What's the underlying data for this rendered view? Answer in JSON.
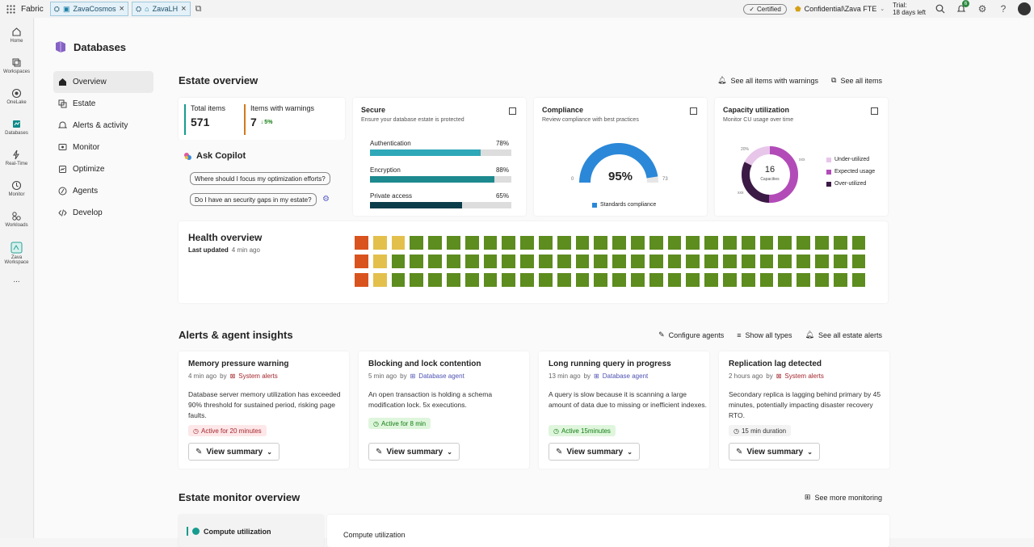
{
  "topbar": {
    "brand": "Fabric",
    "tabs": [
      {
        "label": "ZavaCosmos"
      },
      {
        "label": "ZavaLH"
      }
    ],
    "certified": "Certified",
    "sensitivity": "Confidential\\Zava FTE",
    "trial_line1": "Trial:",
    "trial_line2": "18 days left",
    "notification_count": "6"
  },
  "rail": [
    {
      "label": "Home"
    },
    {
      "label": "Workspaces"
    },
    {
      "label": "OneLake"
    },
    {
      "label": "Databases"
    },
    {
      "label": "Real-Time"
    },
    {
      "label": "Monitor"
    },
    {
      "label": "Workloads"
    },
    {
      "label": "Zava Workspace"
    },
    {
      "label": "..."
    }
  ],
  "page": {
    "title": "Databases"
  },
  "nav": [
    {
      "label": "Overview"
    },
    {
      "label": "Estate"
    },
    {
      "label": "Alerts & activity"
    },
    {
      "label": "Monitor"
    },
    {
      "label": "Optimize"
    },
    {
      "label": "Agents"
    },
    {
      "label": "Develop"
    }
  ],
  "estate": {
    "title": "Estate overview",
    "link_warnings": "See all items with warnings",
    "link_items": "See all items",
    "total_label": "Total items",
    "total_value": "571",
    "warn_label": "Items with warnings",
    "warn_value": "7",
    "warn_delta": "5%",
    "copilot": "Ask Copilot",
    "suggestions": [
      "Where should I focus my optimization efforts?",
      "Do I have an security gaps in my estate?"
    ]
  },
  "secure": {
    "title": "Secure",
    "subtitle": "Ensure your database estate is protected",
    "bars": [
      {
        "label": "Authentication",
        "percent": "78%",
        "value": 78,
        "color": "#2fa8b8"
      },
      {
        "label": "Encryption",
        "percent": "88%",
        "value": 88,
        "color": "#1d8a8f"
      },
      {
        "label": "Private access",
        "percent": "65%",
        "value": 65,
        "color": "#0c3d4a"
      }
    ]
  },
  "compliance": {
    "title": "Compliance",
    "subtitle": "Review compliance with best practices",
    "value": "95%",
    "fraction": 0.95,
    "min": "0",
    "max": "73",
    "legend": "Standards compliance"
  },
  "capacity": {
    "title": "Capacity utilization",
    "subtitle": "Monitor CU usage over time",
    "center_value": "16",
    "center_label": "Capacities",
    "labels": [
      "20%",
      "xxx",
      "xxx"
    ],
    "legend": [
      {
        "label": "Under-utilized",
        "color": "#e7c6ea"
      },
      {
        "label": "Expected usage",
        "color": "#b24bb8"
      },
      {
        "label": "Over-utilized",
        "color": "#3b1a45"
      }
    ]
  },
  "health": {
    "title": "Health overview",
    "updated_label": "Last updated",
    "updated_value": "4 min ago",
    "rows": [
      [
        "r",
        "y",
        "y",
        "g",
        "g",
        "g",
        "g",
        "g",
        "g",
        "g",
        "g",
        "g",
        "g",
        "g",
        "g",
        "g",
        "g",
        "g",
        "g",
        "g",
        "g",
        "g",
        "g",
        "g",
        "g",
        "g",
        "g",
        "g"
      ],
      [
        "r",
        "y",
        "g",
        "g",
        "g",
        "g",
        "g",
        "g",
        "g",
        "g",
        "g",
        "g",
        "g",
        "g",
        "g",
        "g",
        "g",
        "g",
        "g",
        "g",
        "g",
        "g",
        "g",
        "g",
        "g",
        "g",
        "g",
        "g"
      ],
      [
        "r",
        "y",
        "g",
        "g",
        "g",
        "g",
        "g",
        "g",
        "g",
        "g",
        "g",
        "g",
        "g",
        "g",
        "g",
        "g",
        "g",
        "g",
        "g",
        "g",
        "g",
        "g",
        "g",
        "g",
        "g",
        "g",
        "g",
        "g"
      ]
    ],
    "colors": {
      "r": "#d9531e",
      "y": "#e3c04c",
      "g": "#5d8c1f"
    }
  },
  "alerts": {
    "title": "Alerts & agent insights",
    "link_configure": "Configure agents",
    "link_types": "Show all types",
    "link_all": "See all estate alerts",
    "view_summary": "View summary",
    "cards": [
      {
        "title": "Memory pressure warning",
        "time": "4 min ago",
        "by": "by",
        "source": "System alerts",
        "desc": "Database server memory utilization has exceeded 90% threshold for sustained period, risking page faults.",
        "badge": "Active for 20 minutes",
        "badge_type": "red"
      },
      {
        "title": "Blocking and lock contention",
        "time": "5 min ago",
        "by": "by",
        "source": "Database agent",
        "desc": "An open transaction is holding a schema modification lock. 5x executions.",
        "badge": "Active for 8 min",
        "badge_type": "green"
      },
      {
        "title": "Long running query in progress",
        "time": "13 min ago",
        "by": "by",
        "source": "Database agent",
        "desc": "A query is slow because it is scanning a large amount of data due to missing or inefficient indexes.",
        "badge": "Active 15minutes",
        "badge_type": "green"
      },
      {
        "title": "Replication lag detected",
        "time": "2 hours ago",
        "by": "by",
        "source": "System alerts",
        "desc": "Secondary replica is lagging behind primary by 45 minutes, potentially impacting disaster recovery RTO.",
        "badge": "15 min duration",
        "badge_type": "plain"
      }
    ]
  },
  "monitor": {
    "title": "Estate monitor overview",
    "link_more": "See more monitoring",
    "left_label": "Compute utilization",
    "chart_title": "Compute utilization"
  }
}
